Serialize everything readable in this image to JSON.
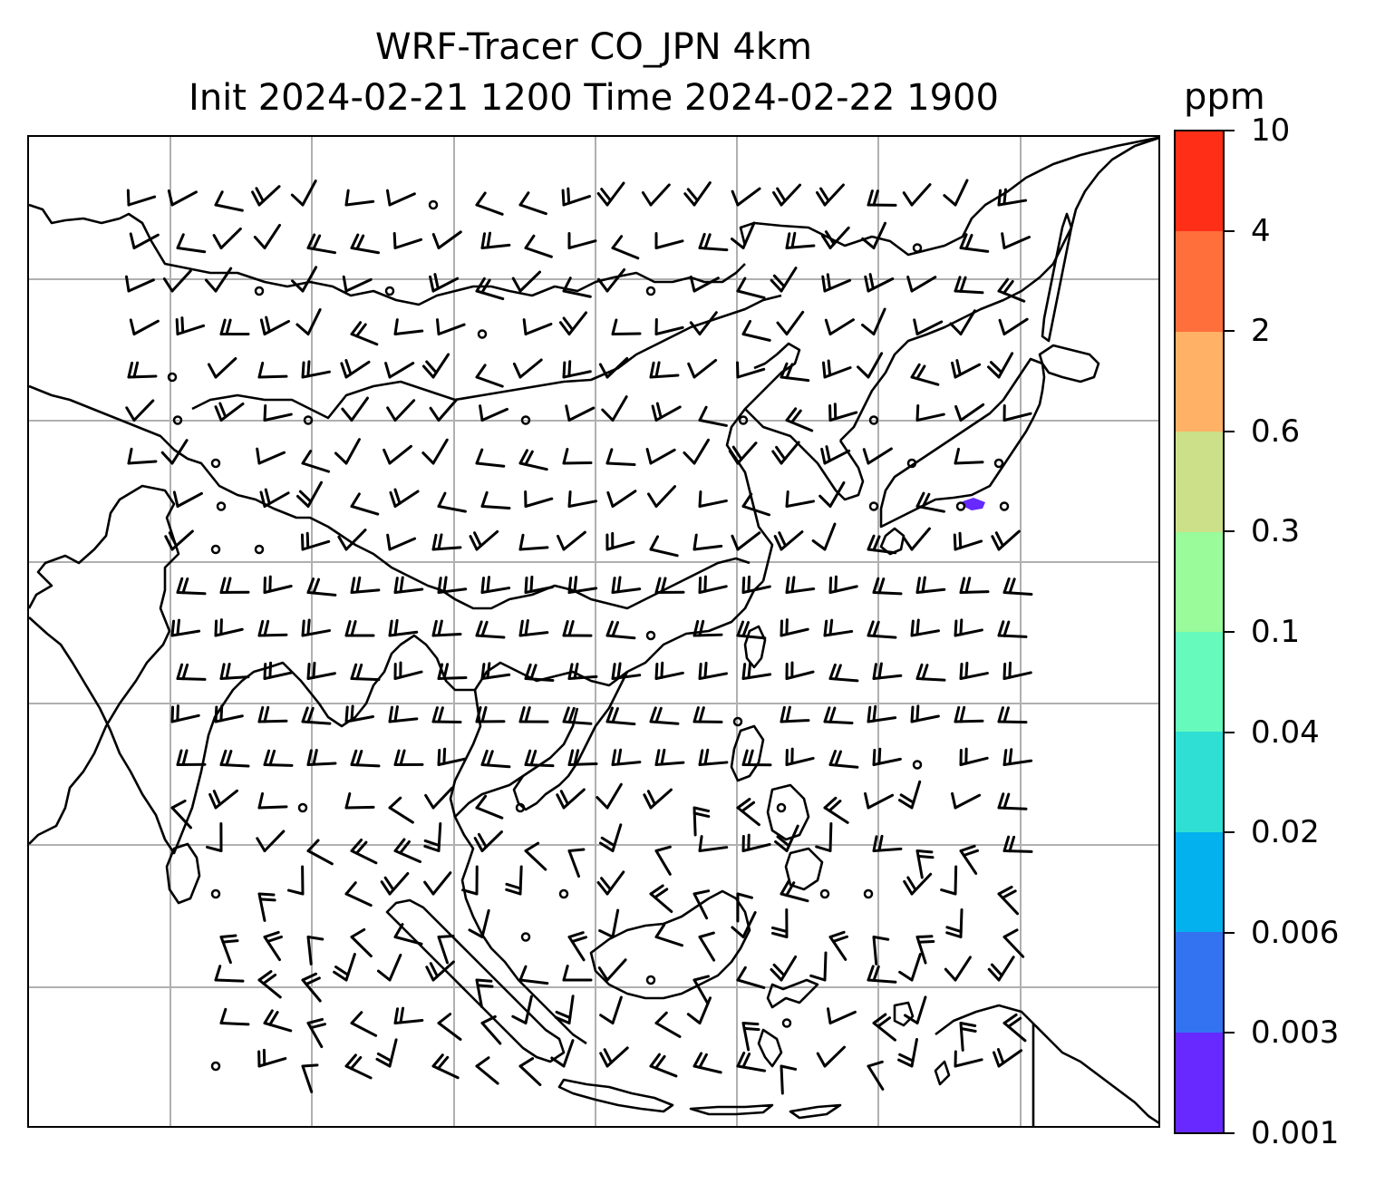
{
  "title_line1": "WRF-Tracer CO_JPN 4km",
  "title_line2": "Init 2024-02-21 1200 Time 2024-02-22 1900",
  "colorbar": {
    "unit": "ppm",
    "levels": [
      "0.001",
      "0.003",
      "0.006",
      "0.02",
      "0.04",
      "0.1",
      "0.3",
      "0.6",
      "2",
      "4",
      "10"
    ],
    "colors": [
      "#6729ff",
      "#3373f2",
      "#02b1ed",
      "#30dfd3",
      "#66fbbd",
      "#99fb99",
      "#cbe089",
      "#ffb166",
      "#ff6f3c",
      "#ff2f17"
    ]
  },
  "map": {
    "coastline_color": "#000000",
    "grid_color": "#b0b0b0",
    "barb_color": "#000000",
    "plume_color": "#6729ff"
  }
}
